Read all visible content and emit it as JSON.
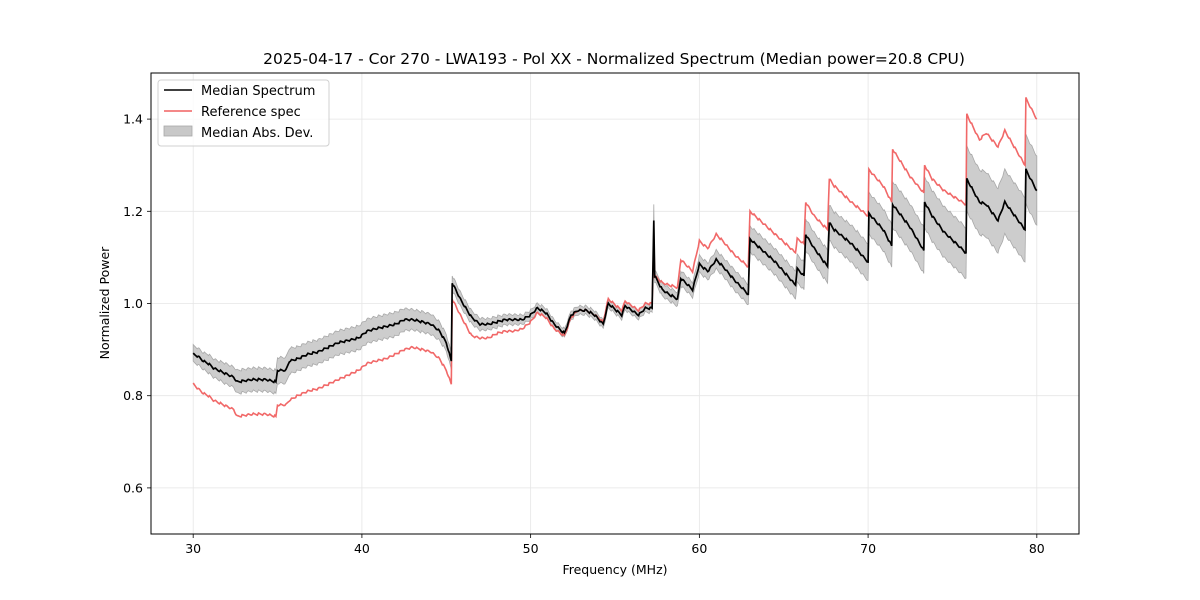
{
  "chart_data": {
    "type": "line",
    "title": "2025-04-17 - Cor 270 - LWA193 - Pol XX - Normalized Spectrum (Median power=20.8 CPU)",
    "xlabel": "Frequency (MHz)",
    "ylabel": "Normalized Power",
    "xlim": [
      27.5,
      82.5
    ],
    "ylim": [
      0.5,
      1.5
    ],
    "xticks": [
      30,
      40,
      50,
      60,
      70,
      80
    ],
    "xtick_labels": [
      "30",
      "40",
      "50",
      "60",
      "70",
      "80"
    ],
    "yticks": [
      0.6,
      0.8,
      1.0,
      1.2,
      1.4
    ],
    "ytick_labels": [
      "0.6",
      "0.8",
      "1.0",
      "1.2",
      "1.4"
    ],
    "grid": true,
    "legend": {
      "placement": "top-left",
      "entries": [
        {
          "label": "Median Spectrum",
          "kind": "line",
          "color": "#000000"
        },
        {
          "label": "Reference spec",
          "kind": "line",
          "color": "#f06060"
        },
        {
          "label": "Median Abs. Dev.",
          "kind": "band",
          "color": "#c8c8c8"
        }
      ]
    },
    "x": [
      30.0,
      30.3,
      30.6,
      30.9,
      31.2,
      31.5,
      31.8,
      32.1,
      32.4,
      32.6,
      33.5,
      34.3,
      34.9,
      35.0,
      35.5,
      35.7,
      36.2,
      36.8,
      37.4,
      38.0,
      38.6,
      39.2,
      39.8,
      40.3,
      40.8,
      41.4,
      42.0,
      42.5,
      43.0,
      43.6,
      44.1,
      44.6,
      45.0,
      45.3,
      45.35,
      45.9,
      46.5,
      47.0,
      47.5,
      48.0,
      48.5,
      49.0,
      49.5,
      50.0,
      50.4,
      50.9,
      51.4,
      52.0,
      52.4,
      52.8,
      53.3,
      53.8,
      54.3,
      54.6,
      55.4,
      55.6,
      56.4,
      56.8,
      57.2,
      57.3,
      57.35,
      57.8,
      58.2,
      58.7,
      58.9,
      59.6,
      60.0,
      60.5,
      61.0,
      61.4,
      62.1,
      62.9,
      63.0,
      64.5,
      65.7,
      65.8,
      66.2,
      66.3,
      66.8,
      67.6,
      67.7,
      68.0,
      69.0,
      70.0,
      70.05,
      70.9,
      71.4,
      71.45,
      72.5,
      73.3,
      73.35,
      73.8,
      74.5,
      75.8,
      75.85,
      76.6,
      77.0,
      77.7,
      78.1,
      79.3,
      79.35,
      80.0
    ],
    "series": [
      {
        "name": "Median Spectrum",
        "color": "#000000",
        "values": [
          0.89,
          0.885,
          0.875,
          0.87,
          0.86,
          0.855,
          0.85,
          0.845,
          0.84,
          0.83,
          0.835,
          0.835,
          0.83,
          0.855,
          0.855,
          0.875,
          0.88,
          0.89,
          0.895,
          0.905,
          0.915,
          0.92,
          0.925,
          0.94,
          0.945,
          0.95,
          0.955,
          0.965,
          0.965,
          0.96,
          0.955,
          0.94,
          0.915,
          0.875,
          1.045,
          1.005,
          0.97,
          0.955,
          0.955,
          0.96,
          0.965,
          0.965,
          0.965,
          0.975,
          0.99,
          0.98,
          0.955,
          0.935,
          0.975,
          0.985,
          0.985,
          0.975,
          0.955,
          1.0,
          0.975,
          0.995,
          0.975,
          0.99,
          0.99,
          1.18,
          1.06,
          1.03,
          1.02,
          1.01,
          1.055,
          1.03,
          1.085,
          1.07,
          1.095,
          1.08,
          1.05,
          1.02,
          1.14,
          1.09,
          1.04,
          1.075,
          1.06,
          1.15,
          1.12,
          1.08,
          1.175,
          1.16,
          1.13,
          1.09,
          1.195,
          1.16,
          1.125,
          1.215,
          1.165,
          1.115,
          1.22,
          1.19,
          1.155,
          1.11,
          1.27,
          1.22,
          1.215,
          1.18,
          1.22,
          1.16,
          1.29,
          1.245
        ]
      },
      {
        "name": "Reference spec",
        "color": "#f06060",
        "values": [
          0.825,
          0.815,
          0.805,
          0.8,
          0.79,
          0.785,
          0.78,
          0.775,
          0.77,
          0.755,
          0.76,
          0.76,
          0.755,
          0.78,
          0.78,
          0.79,
          0.8,
          0.81,
          0.815,
          0.825,
          0.835,
          0.845,
          0.855,
          0.87,
          0.875,
          0.88,
          0.89,
          0.9,
          0.905,
          0.9,
          0.895,
          0.88,
          0.855,
          0.825,
          1.01,
          0.97,
          0.93,
          0.925,
          0.925,
          0.935,
          0.94,
          0.94,
          0.945,
          0.96,
          0.98,
          0.97,
          0.945,
          0.93,
          0.97,
          0.985,
          0.985,
          0.975,
          0.96,
          1.01,
          0.985,
          1.005,
          0.985,
          1.0,
          1.0,
          1.14,
          1.06,
          1.045,
          1.04,
          1.035,
          1.095,
          1.07,
          1.135,
          1.12,
          1.15,
          1.135,
          1.105,
          1.08,
          1.2,
          1.15,
          1.11,
          1.14,
          1.13,
          1.22,
          1.19,
          1.16,
          1.27,
          1.255,
          1.22,
          1.19,
          1.29,
          1.255,
          1.22,
          1.335,
          1.275,
          1.24,
          1.3,
          1.27,
          1.245,
          1.215,
          1.41,
          1.355,
          1.37,
          1.34,
          1.375,
          1.3,
          1.445,
          1.4
        ]
      }
    ],
    "band": {
      "name": "Median Abs. Dev.",
      "color": "#c8c8c8",
      "halfwidth": [
        0.018,
        0.018,
        0.018,
        0.02,
        0.02,
        0.02,
        0.022,
        0.022,
        0.022,
        0.025,
        0.025,
        0.025,
        0.025,
        0.028,
        0.028,
        0.028,
        0.026,
        0.026,
        0.026,
        0.026,
        0.026,
        0.026,
        0.026,
        0.026,
        0.026,
        0.026,
        0.026,
        0.024,
        0.022,
        0.022,
        0.022,
        0.02,
        0.018,
        0.018,
        0.016,
        0.015,
        0.014,
        0.013,
        0.012,
        0.012,
        0.011,
        0.011,
        0.01,
        0.01,
        0.01,
        0.01,
        0.009,
        0.009,
        0.009,
        0.009,
        0.009,
        0.009,
        0.009,
        0.009,
        0.009,
        0.009,
        0.009,
        0.009,
        0.009,
        0.035,
        0.012,
        0.014,
        0.014,
        0.015,
        0.016,
        0.016,
        0.018,
        0.018,
        0.02,
        0.02,
        0.022,
        0.022,
        0.028,
        0.028,
        0.03,
        0.03,
        0.03,
        0.034,
        0.034,
        0.036,
        0.038,
        0.038,
        0.04,
        0.04,
        0.045,
        0.045,
        0.046,
        0.05,
        0.05,
        0.05,
        0.055,
        0.055,
        0.055,
        0.055,
        0.07,
        0.07,
        0.07,
        0.07,
        0.07,
        0.07,
        0.075,
        0.075
      ]
    }
  }
}
